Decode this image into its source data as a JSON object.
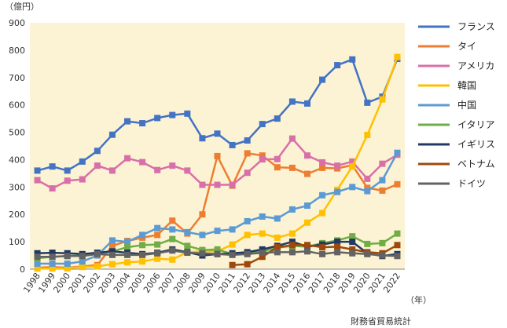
{
  "chart_data": {
    "type": "line",
    "y_unit_label": "（億円）",
    "x_unit_label": "（年）",
    "source": "財務省貿易統計",
    "ylim": [
      0,
      900
    ],
    "yticks": [
      "0",
      "100",
      "200",
      "300",
      "400",
      "500",
      "600",
      "700",
      "800",
      "900"
    ],
    "grid": false,
    "legend_position": "right",
    "x": [
      "1998",
      "1999",
      "2000",
      "2001",
      "2002",
      "2003",
      "2004",
      "2005",
      "2006",
      "2007",
      "2008",
      "2009",
      "2010",
      "2011",
      "2012",
      "2013",
      "2014",
      "2015",
      "2016",
      "2017",
      "2018",
      "2019",
      "2020",
      "2021",
      "2022"
    ],
    "series": [
      {
        "name": "フランス",
        "color": "#4472c4",
        "values": [
          360,
          375,
          360,
          393,
          432,
          491,
          540,
          533,
          552,
          563,
          568,
          478,
          495,
          453,
          470,
          530,
          550,
          612,
          605,
          692,
          745,
          766,
          608,
          630,
          768
        ]
      },
      {
        "name": "タイ",
        "color": "#ed7d31",
        "values": [
          5,
          8,
          5,
          10,
          15,
          85,
          103,
          115,
          125,
          177,
          130,
          200,
          413,
          305,
          423,
          415,
          372,
          370,
          348,
          370,
          368,
          380,
          297,
          287,
          310
        ]
      },
      {
        "name": "アメリカ",
        "color": "#d96fa8",
        "values": [
          325,
          295,
          323,
          328,
          378,
          360,
          405,
          391,
          362,
          378,
          360,
          308,
          308,
          308,
          352,
          401,
          402,
          477,
          415,
          390,
          378,
          393,
          330,
          385,
          418
        ]
      },
      {
        "name": "韓国",
        "color": "#ffc000",
        "values": [
          2,
          2,
          3,
          8,
          10,
          18,
          25,
          28,
          38,
          35,
          62,
          65,
          65,
          90,
          125,
          130,
          115,
          130,
          170,
          205,
          290,
          375,
          490,
          620,
          775
        ]
      },
      {
        "name": "中国",
        "color": "#5b9bd5",
        "values": [
          20,
          20,
          20,
          28,
          50,
          105,
          100,
          125,
          150,
          145,
          135,
          125,
          140,
          145,
          175,
          192,
          185,
          218,
          232,
          270,
          282,
          300,
          285,
          325,
          425
        ]
      },
      {
        "name": "イタリア",
        "color": "#70ad47",
        "values": [
          40,
          45,
          48,
          50,
          55,
          65,
          80,
          88,
          90,
          110,
          85,
          70,
          72,
          55,
          60,
          65,
          78,
          85,
          82,
          95,
          105,
          120,
          92,
          95,
          130
        ]
      },
      {
        "name": "イギリス",
        "color": "#203864",
        "values": [
          58,
          60,
          58,
          55,
          60,
          65,
          60,
          55,
          60,
          72,
          62,
          50,
          55,
          58,
          62,
          72,
          85,
          100,
          82,
          90,
          100,
          100,
          58,
          48,
          55
        ]
      },
      {
        "name": "ベトナム",
        "color": "#9e480e",
        "values": [
          null,
          null,
          null,
          null,
          null,
          null,
          null,
          null,
          null,
          null,
          null,
          null,
          null,
          15,
          18,
          45,
          80,
          88,
          88,
          80,
          82,
          72,
          62,
          58,
          88
        ]
      },
      {
        "name": "ドイツ",
        "color": "#636363",
        "values": [
          45,
          45,
          48,
          48,
          55,
          52,
          52,
          52,
          58,
          68,
          60,
          58,
          55,
          52,
          55,
          60,
          62,
          62,
          65,
          55,
          62,
          58,
          55,
          50,
          48
        ]
      }
    ]
  }
}
